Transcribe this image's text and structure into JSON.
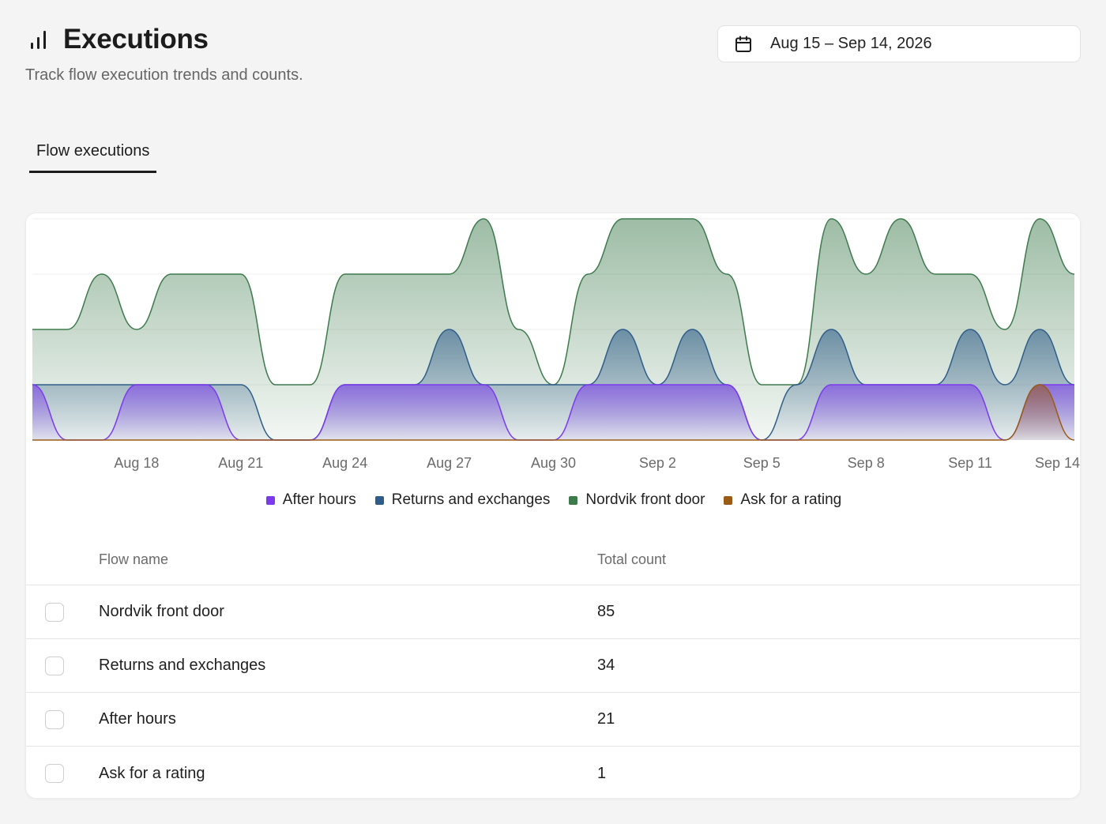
{
  "header": {
    "title": "Executions",
    "subtitle": "Track flow execution trends and counts.",
    "title_icon": "bar-chart-icon"
  },
  "date_range": {
    "label": "Aug 15 – Sep 14, 2026",
    "icon": "calendar-icon"
  },
  "tabs": [
    {
      "label": "Flow executions",
      "active": true
    }
  ],
  "chart_data": {
    "type": "area",
    "x_labels": [
      "Aug 18",
      "Aug 21",
      "Aug 24",
      "Aug 27",
      "Aug 30",
      "Sep 2",
      "Sep 5",
      "Sep 8",
      "Sep 11",
      "Sep 14"
    ],
    "legend_position": "bottom-center",
    "grid": true,
    "stacked": false,
    "ylim": [
      0,
      4
    ],
    "series": [
      {
        "name": "Nordvik front door",
        "color": "#3d7a4c",
        "x": [
          "Aug 15",
          "Aug 16",
          "Aug 17",
          "Aug 18",
          "Aug 19",
          "Aug 20",
          "Aug 21",
          "Aug 22",
          "Aug 23",
          "Aug 24",
          "Aug 25",
          "Aug 26",
          "Aug 27",
          "Aug 28",
          "Aug 29",
          "Aug 30",
          "Aug 31",
          "Sep 1",
          "Sep 2",
          "Sep 3",
          "Sep 4",
          "Sep 5",
          "Sep 6",
          "Sep 7",
          "Sep 8",
          "Sep 9",
          "Sep 10",
          "Sep 11",
          "Sep 12",
          "Sep 13",
          "Sep 14"
        ],
        "values": [
          2,
          2,
          3,
          2,
          3,
          3,
          3,
          1,
          1,
          3,
          3,
          3,
          3,
          4,
          2,
          1,
          3,
          4,
          4,
          4,
          3,
          1,
          1,
          4,
          3,
          4,
          3,
          3,
          2,
          4,
          3
        ]
      },
      {
        "name": "Returns and exchanges",
        "color": "#2f5d8a",
        "x": [
          "Aug 15",
          "Aug 16",
          "Aug 17",
          "Aug 18",
          "Aug 19",
          "Aug 20",
          "Aug 21",
          "Aug 22",
          "Aug 23",
          "Aug 24",
          "Aug 25",
          "Aug 26",
          "Aug 27",
          "Aug 28",
          "Aug 29",
          "Aug 30",
          "Aug 31",
          "Sep 1",
          "Sep 2",
          "Sep 3",
          "Sep 4",
          "Sep 5",
          "Sep 6",
          "Sep 7",
          "Sep 8",
          "Sep 9",
          "Sep 10",
          "Sep 11",
          "Sep 12",
          "Sep 13",
          "Sep 14"
        ],
        "values": [
          1,
          1,
          1,
          1,
          1,
          1,
          1,
          0,
          0,
          1,
          1,
          1,
          2,
          1,
          1,
          1,
          1,
          2,
          1,
          2,
          1,
          0,
          1,
          2,
          1,
          1,
          1,
          2,
          1,
          2,
          1
        ]
      },
      {
        "name": "After hours",
        "color": "#7c3aed",
        "x": [
          "Aug 15",
          "Aug 16",
          "Aug 17",
          "Aug 18",
          "Aug 19",
          "Aug 20",
          "Aug 21",
          "Aug 22",
          "Aug 23",
          "Aug 24",
          "Aug 25",
          "Aug 26",
          "Aug 27",
          "Aug 28",
          "Aug 29",
          "Aug 30",
          "Aug 31",
          "Sep 1",
          "Sep 2",
          "Sep 3",
          "Sep 4",
          "Sep 5",
          "Sep 6",
          "Sep 7",
          "Sep 8",
          "Sep 9",
          "Sep 10",
          "Sep 11",
          "Sep 12",
          "Sep 13",
          "Sep 14"
        ],
        "values": [
          1,
          0,
          0,
          1,
          1,
          1,
          0,
          0,
          0,
          1,
          1,
          1,
          1,
          1,
          0,
          0,
          1,
          1,
          1,
          1,
          1,
          0,
          0,
          1,
          1,
          1,
          1,
          1,
          0,
          1,
          1
        ]
      },
      {
        "name": "Ask for a rating",
        "color": "#9a5b16",
        "x": [
          "Aug 15",
          "Aug 16",
          "Aug 17",
          "Aug 18",
          "Aug 19",
          "Aug 20",
          "Aug 21",
          "Aug 22",
          "Aug 23",
          "Aug 24",
          "Aug 25",
          "Aug 26",
          "Aug 27",
          "Aug 28",
          "Aug 29",
          "Aug 30",
          "Aug 31",
          "Sep 1",
          "Sep 2",
          "Sep 3",
          "Sep 4",
          "Sep 5",
          "Sep 6",
          "Sep 7",
          "Sep 8",
          "Sep 9",
          "Sep 10",
          "Sep 11",
          "Sep 12",
          "Sep 13",
          "Sep 14"
        ],
        "values": [
          0,
          0,
          0,
          0,
          0,
          0,
          0,
          0,
          0,
          0,
          0,
          0,
          0,
          0,
          0,
          0,
          0,
          0,
          0,
          0,
          0,
          0,
          0,
          0,
          0,
          0,
          0,
          0,
          0,
          1,
          0
        ]
      }
    ]
  },
  "legend": [
    {
      "label": "After hours",
      "color": "#7c3aed"
    },
    {
      "label": "Returns and exchanges",
      "color": "#2f5d8a"
    },
    {
      "label": "Nordvik front door",
      "color": "#3d7a4c"
    },
    {
      "label": "Ask for a rating",
      "color": "#9a5b16"
    }
  ],
  "table": {
    "columns": [
      "Flow name",
      "Total count"
    ],
    "rows": [
      {
        "name": "Nordvik front door",
        "count": "85"
      },
      {
        "name": "Returns and exchanges",
        "count": "34"
      },
      {
        "name": "After hours",
        "count": "21"
      },
      {
        "name": "Ask for a rating",
        "count": "1"
      }
    ]
  }
}
